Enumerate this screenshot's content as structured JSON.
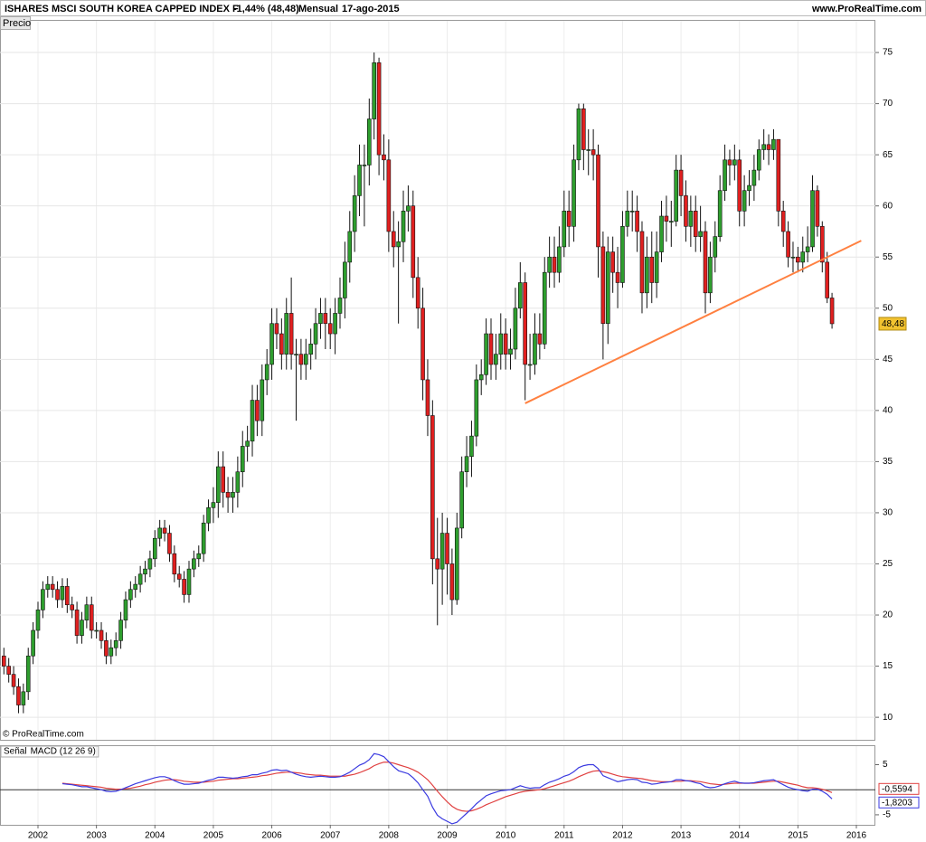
{
  "header": {
    "title": "ISHARES MSCI SOUTH KOREA CAPPED INDEX F",
    "change": "-1,44% (48,48)",
    "period": "Mensual",
    "date": "17-ago-2015",
    "source": "www.ProRealTime.com"
  },
  "chart_data": [
    {
      "type": "candlestick",
      "panel_label": "Precio",
      "copyright": "© ProRealTime.com",
      "up_color": "#2e9e2e",
      "down_color": "#e02020",
      "grid": true,
      "ylim": [
        7.8,
        78.1
      ],
      "yticks": [
        10,
        15,
        20,
        25,
        30,
        35,
        40,
        45,
        50,
        55,
        60,
        65,
        70,
        75
      ],
      "categories": [
        null,
        null,
        null,
        null,
        null,
        null,
        null,
        "2002",
        null,
        null,
        null,
        null,
        null,
        null,
        null,
        null,
        null,
        null,
        null,
        "2003",
        null,
        null,
        null,
        null,
        null,
        null,
        null,
        null,
        null,
        null,
        null,
        "2004",
        null,
        null,
        null,
        null,
        null,
        null,
        null,
        null,
        null,
        null,
        null,
        "2005",
        null,
        null,
        null,
        null,
        null,
        null,
        null,
        null,
        null,
        null,
        null,
        "2006",
        null,
        null,
        null,
        null,
        null,
        null,
        null,
        null,
        null,
        null,
        null,
        "2007",
        null,
        null,
        null,
        null,
        null,
        null,
        null,
        null,
        null,
        null,
        null,
        "2008",
        null,
        null,
        null,
        null,
        null,
        null,
        null,
        null,
        null,
        null,
        null,
        "2009",
        null,
        null,
        null,
        null,
        null,
        null,
        null,
        null,
        null,
        null,
        null,
        "2010",
        null,
        null,
        null,
        null,
        null,
        null,
        null,
        null,
        null,
        null,
        null,
        "2011",
        null,
        null,
        null,
        null,
        null,
        null,
        null,
        null,
        null,
        null,
        null,
        "2012",
        null,
        null,
        null,
        null,
        null,
        null,
        null,
        null,
        null,
        null,
        null,
        "2013",
        null,
        null,
        null,
        null,
        null,
        null,
        null,
        null,
        null,
        null,
        null,
        "2014",
        null,
        null,
        null,
        null,
        null,
        null,
        null,
        null,
        null,
        null,
        null,
        "2015",
        null,
        null,
        null,
        null,
        null,
        null,
        null,
        null,
        null,
        null,
        null,
        "2016"
      ],
      "open": [
        16.0,
        15.0,
        14.2,
        13.0,
        11.2,
        12.5,
        16.0,
        18.5,
        20.5,
        22.5,
        23.0,
        22.5,
        21.5,
        22.8,
        21.0,
        20.5,
        18.0,
        19.5,
        21.0,
        18.5,
        18.5,
        17.5,
        16.0,
        16.8,
        17.5,
        19.5,
        21.5,
        22.5,
        23.0,
        24.0,
        24.5,
        25.5,
        27.5,
        28.5,
        28.0,
        26.0,
        24.0,
        23.5,
        22.0,
        24.5,
        25.5,
        26.0,
        29.0,
        30.5,
        31.0,
        34.5,
        32.0,
        31.5,
        32.0,
        34.0,
        36.5,
        37.0,
        41.0,
        39.0,
        43.0,
        44.5,
        48.5,
        47.5,
        45.5,
        49.5,
        45.5,
        45.5,
        44.5,
        45.5,
        46.5,
        48.5,
        49.5,
        48.5,
        47.5,
        49.5,
        51.0,
        54.5,
        57.5,
        61.0,
        64.0,
        64.0,
        68.5,
        74.0,
        65.0,
        64.5,
        57.5,
        56.0,
        56.5,
        59.5,
        60.0,
        53.0,
        50.0,
        43.0,
        39.5,
        25.5,
        24.5,
        28.0,
        25.0,
        21.5,
        28.5,
        34.0,
        35.5,
        37.5,
        43.0,
        43.5,
        47.5,
        44.5,
        45.5,
        47.5,
        45.5,
        46.0,
        50.0,
        52.5,
        44.5,
        44.5,
        47.5,
        46.5,
        53.5,
        55.0,
        53.5,
        56.0,
        59.5,
        58.0,
        64.5,
        69.5,
        65.5,
        65.5,
        65.0,
        56.0,
        48.5,
        55.5,
        53.5,
        52.5,
        58.0,
        59.5,
        59.5,
        57.5,
        51.5,
        55.0,
        52.5,
        55.5,
        59.0,
        58.5,
        58.5,
        63.5,
        61.0,
        58.0,
        59.5,
        57.0,
        57.5,
        51.5,
        55.0,
        57.0,
        61.5,
        64.5,
        64.0,
        64.5,
        59.5,
        61.5,
        62.0,
        63.5,
        65.5,
        66.0,
        65.5,
        66.5,
        59.5,
        57.5,
        55.0,
        55.0,
        54.5,
        55.5,
        56.0,
        61.5,
        58.0,
        54.5,
        51.0,
        null,
        null,
        null,
        null,
        null
      ],
      "high": [
        16.8,
        15.8,
        15.0,
        13.8,
        13.3,
        16.8,
        19.3,
        21.3,
        23.3,
        23.8,
        23.8,
        23.3,
        23.6,
        23.6,
        21.8,
        21.3,
        20.3,
        21.8,
        21.8,
        19.3,
        19.3,
        18.3,
        17.6,
        18.3,
        20.3,
        22.3,
        23.3,
        23.8,
        24.8,
        25.3,
        26.3,
        28.3,
        29.3,
        29.3,
        28.8,
        26.8,
        24.8,
        24.3,
        25.3,
        26.3,
        26.8,
        29.8,
        31.3,
        32.5,
        36.0,
        36.0,
        33.5,
        33.5,
        35.5,
        38.0,
        38.5,
        42.5,
        42.5,
        44.5,
        46.0,
        50.0,
        50.0,
        49.0,
        51.0,
        53.0,
        47.0,
        47.0,
        47.0,
        48.0,
        50.0,
        51.0,
        51.0,
        50.0,
        51.0,
        53.0,
        56.5,
        59.5,
        63.0,
        66.0,
        66.0,
        70.5,
        75.0,
        74.5,
        67.0,
        66.5,
        59.5,
        58.5,
        61.5,
        62.0,
        61.5,
        55.0,
        52.0,
        45.0,
        41.0,
        29.5,
        30.0,
        29.5,
        26.5,
        30.0,
        35.5,
        37.5,
        39.0,
        44.5,
        45.0,
        49.0,
        49.0,
        47.5,
        49.5,
        49.0,
        48.0,
        52.0,
        54.5,
        53.5,
        47.5,
        49.5,
        49.5,
        55.0,
        57.0,
        57.0,
        58.0,
        61.5,
        61.5,
        66.0,
        70.0,
        70.0,
        67.5,
        67.5,
        66.0,
        57.5,
        57.0,
        57.0,
        56.0,
        59.5,
        61.5,
        61.5,
        61.0,
        58.5,
        57.0,
        57.5,
        57.5,
        60.5,
        61.0,
        60.5,
        65.0,
        65.0,
        62.5,
        61.0,
        61.0,
        60.0,
        58.5,
        56.5,
        58.5,
        63.0,
        66.0,
        65.5,
        66.0,
        65.5,
        63.0,
        63.5,
        65.0,
        66.5,
        67.5,
        67.0,
        67.5,
        66.5,
        60.5,
        58.5,
        56.5,
        56.0,
        57.0,
        58.0,
        63.0,
        62.0,
        58.5,
        55.5,
        51.5,
        null,
        null,
        null,
        null,
        null
      ],
      "low": [
        14.2,
        13.4,
        12.2,
        10.4,
        10.4,
        11.7,
        15.2,
        17.7,
        19.7,
        21.7,
        21.7,
        20.7,
        20.7,
        20.2,
        19.7,
        17.2,
        17.2,
        18.7,
        17.7,
        17.7,
        16.7,
        15.2,
        15.2,
        16.0,
        16.7,
        18.7,
        20.7,
        21.7,
        22.2,
        23.2,
        23.7,
        24.7,
        26.7,
        27.2,
        25.2,
        23.2,
        22.7,
        21.2,
        21.2,
        23.7,
        24.7,
        25.2,
        28.2,
        29.0,
        29.5,
        30.5,
        30.0,
        30.0,
        30.5,
        32.5,
        35.0,
        35.5,
        37.5,
        37.5,
        41.5,
        43.0,
        46.0,
        44.0,
        44.0,
        44.0,
        39.0,
        43.0,
        43.0,
        44.0,
        45.0,
        47.0,
        46.0,
        46.0,
        45.5,
        48.0,
        49.0,
        52.5,
        55.5,
        59.0,
        58.0,
        62.0,
        66.5,
        63.0,
        62.5,
        55.5,
        54.0,
        48.5,
        54.5,
        57.5,
        51.0,
        48.0,
        41.0,
        37.5,
        23.0,
        19.0,
        21.0,
        22.0,
        20.0,
        21.0,
        27.5,
        32.5,
        33.5,
        36.5,
        41.5,
        42.5,
        43.0,
        43.0,
        44.0,
        44.0,
        44.0,
        45.0,
        49.0,
        41.0,
        43.0,
        43.5,
        45.0,
        46.0,
        52.0,
        52.0,
        52.5,
        55.0,
        56.0,
        56.5,
        63.5,
        63.5,
        63.0,
        62.5,
        53.0,
        45.0,
        46.5,
        51.5,
        50.0,
        52.0,
        57.0,
        57.5,
        55.5,
        49.5,
        50.0,
        50.5,
        51.0,
        54.5,
        56.5,
        56.0,
        58.0,
        59.0,
        56.5,
        56.0,
        55.5,
        55.5,
        49.5,
        50.5,
        53.5,
        56.5,
        60.5,
        62.0,
        62.5,
        58.0,
        58.0,
        60.0,
        60.5,
        62.5,
        64.5,
        64.0,
        64.5,
        58.0,
        56.0,
        54.0,
        53.5,
        53.5,
        53.5,
        54.5,
        55.5,
        57.0,
        53.5,
        50.5,
        48.0,
        null,
        null,
        null,
        null,
        null
      ],
      "close": [
        15.0,
        14.2,
        13.0,
        11.2,
        12.5,
        16.0,
        18.5,
        20.5,
        22.5,
        23.0,
        22.5,
        21.5,
        22.8,
        21.0,
        20.5,
        18.0,
        19.5,
        21.0,
        18.5,
        18.5,
        17.5,
        16.0,
        16.8,
        17.5,
        19.5,
        21.5,
        22.5,
        23.0,
        24.0,
        24.5,
        25.5,
        27.5,
        28.5,
        28.0,
        26.0,
        24.0,
        23.5,
        22.0,
        24.5,
        25.5,
        26.0,
        29.0,
        30.5,
        31.0,
        34.5,
        32.0,
        31.5,
        32.0,
        34.0,
        36.5,
        37.0,
        41.0,
        39.0,
        43.0,
        44.5,
        48.5,
        47.5,
        45.5,
        49.5,
        45.5,
        45.5,
        44.5,
        45.5,
        46.5,
        48.5,
        49.5,
        48.5,
        47.5,
        49.5,
        51.0,
        54.5,
        57.5,
        61.0,
        64.0,
        64.0,
        68.5,
        74.0,
        65.0,
        64.5,
        57.5,
        56.0,
        56.5,
        59.5,
        60.0,
        53.0,
        50.0,
        43.0,
        39.5,
        25.5,
        24.5,
        28.0,
        25.0,
        21.5,
        28.5,
        34.0,
        35.5,
        37.5,
        43.0,
        43.5,
        47.5,
        44.5,
        45.5,
        47.5,
        45.5,
        46.0,
        50.0,
        52.5,
        44.5,
        44.5,
        47.5,
        46.5,
        53.5,
        55.0,
        53.5,
        56.0,
        59.5,
        58.0,
        64.5,
        69.5,
        65.5,
        65.5,
        65.0,
        56.0,
        48.5,
        55.5,
        53.5,
        52.5,
        58.0,
        59.5,
        59.5,
        57.5,
        51.5,
        55.0,
        52.5,
        55.5,
        59.0,
        58.5,
        58.5,
        63.5,
        61.0,
        58.0,
        59.5,
        57.0,
        57.5,
        51.5,
        55.0,
        57.0,
        61.5,
        64.5,
        64.0,
        64.5,
        59.5,
        61.5,
        62.0,
        63.5,
        65.5,
        66.0,
        65.5,
        66.5,
        59.5,
        57.5,
        55.0,
        55.0,
        54.5,
        55.5,
        56.0,
        61.5,
        58.0,
        54.5,
        51.0,
        48.48,
        null,
        null,
        null,
        null,
        null
      ],
      "last_label": "48,48",
      "trendline": {
        "color": "#ff8040",
        "x": [
          107,
          176
        ],
        "y": [
          40.7,
          56.6
        ]
      }
    },
    {
      "type": "line",
      "ylim": [
        -7,
        8.7
      ],
      "yticks": [
        -5,
        5
      ],
      "series": [
        {
          "name": "Señal",
          "color": "#e04040",
          "last_label": "-0,5594",
          "values": [
            null,
            null,
            null,
            null,
            null,
            null,
            null,
            null,
            null,
            null,
            null,
            null,
            1.3,
            1.2,
            1.1,
            1.0,
            0.9,
            0.8,
            0.7,
            0.6,
            0.5,
            0.3,
            0.2,
            0.1,
            0.1,
            0.2,
            0.3,
            0.5,
            0.7,
            1.0,
            1.2,
            1.5,
            1.7,
            1.9,
            2.0,
            2.0,
            1.9,
            1.7,
            1.6,
            1.5,
            1.5,
            1.5,
            1.6,
            1.7,
            1.9,
            2.0,
            2.1,
            2.2,
            2.2,
            2.3,
            2.4,
            2.5,
            2.6,
            2.8,
            2.9,
            3.1,
            3.3,
            3.4,
            3.5,
            3.5,
            3.4,
            3.3,
            3.1,
            3.0,
            2.9,
            2.9,
            2.8,
            2.7,
            2.7,
            2.7,
            2.7,
            2.9,
            3.1,
            3.4,
            3.8,
            4.2,
            4.8,
            5.2,
            5.5,
            5.5,
            5.3,
            5.0,
            4.7,
            4.4,
            4.0,
            3.5,
            2.8,
            2.0,
            0.9,
            -0.3,
            -1.4,
            -2.4,
            -3.3,
            -3.9,
            -4.2,
            -4.3,
            -4.2,
            -3.9,
            -3.5,
            -3.0,
            -2.6,
            -2.2,
            -1.8,
            -1.4,
            -1.1,
            -0.8,
            -0.5,
            -0.3,
            -0.2,
            -0.1,
            0.0,
            0.2,
            0.5,
            0.8,
            1.1,
            1.4,
            1.7,
            2.1,
            2.6,
            3.0,
            3.4,
            3.7,
            3.8,
            3.6,
            3.4,
            3.1,
            2.8,
            2.6,
            2.5,
            2.4,
            2.3,
            2.2,
            2.0,
            1.8,
            1.7,
            1.6,
            1.6,
            1.6,
            1.7,
            1.7,
            1.8,
            1.8,
            1.7,
            1.6,
            1.4,
            1.2,
            1.1,
            1.0,
            1.1,
            1.2,
            1.3,
            1.3,
            1.3,
            1.3,
            1.3,
            1.4,
            1.5,
            1.6,
            1.7,
            1.7,
            1.5,
            1.3,
            1.1,
            0.9,
            0.6,
            0.4,
            0.4,
            0.3,
            0.1,
            -0.2,
            -0.5594,
            null,
            null,
            null,
            null,
            null
          ]
        },
        {
          "name": "MACD (12 26 9)",
          "color": "#3a3ae0",
          "last_label": "-1,8203",
          "values": [
            null,
            null,
            null,
            null,
            null,
            null,
            null,
            null,
            null,
            null,
            null,
            null,
            1.2,
            1.1,
            1.0,
            0.8,
            0.6,
            0.6,
            0.4,
            0.2,
            0.0,
            -0.3,
            -0.4,
            -0.3,
            0.0,
            0.4,
            0.8,
            1.2,
            1.5,
            1.8,
            2.1,
            2.4,
            2.6,
            2.6,
            2.3,
            1.8,
            1.4,
            1.1,
            1.1,
            1.2,
            1.3,
            1.6,
            1.9,
            2.1,
            2.5,
            2.5,
            2.4,
            2.3,
            2.4,
            2.6,
            2.7,
            3.0,
            3.0,
            3.3,
            3.5,
            3.9,
            4.0,
            3.8,
            3.9,
            3.5,
            3.1,
            2.8,
            2.6,
            2.5,
            2.6,
            2.7,
            2.6,
            2.5,
            2.5,
            2.6,
            3.0,
            3.5,
            4.2,
            4.9,
            5.3,
            6.0,
            7.2,
            7.0,
            6.6,
            5.6,
            4.6,
            3.8,
            3.5,
            3.2,
            2.4,
            1.4,
            0.0,
            -1.3,
            -3.5,
            -5.1,
            -5.8,
            -6.3,
            -6.8,
            -6.5,
            -5.6,
            -4.7,
            -3.8,
            -2.8,
            -2.0,
            -1.2,
            -0.8,
            -0.5,
            -0.2,
            -0.1,
            0.0,
            0.4,
            0.8,
            0.5,
            0.3,
            0.4,
            0.4,
            1.0,
            1.5,
            1.8,
            2.2,
            2.7,
            3.0,
            3.6,
            4.4,
            4.8,
            5.0,
            5.0,
            4.2,
            2.8,
            2.4,
            2.0,
            1.6,
            1.8,
            2.0,
            2.1,
            2.0,
            1.5,
            1.4,
            1.1,
            1.2,
            1.4,
            1.5,
            1.6,
            2.0,
            2.0,
            1.8,
            1.7,
            1.4,
            1.2,
            0.6,
            0.4,
            0.5,
            0.8,
            1.2,
            1.5,
            1.7,
            1.4,
            1.3,
            1.3,
            1.4,
            1.6,
            1.8,
            1.9,
            2.0,
            1.5,
            1.0,
            0.5,
            0.2,
            0.0,
            -0.2,
            -0.3,
            0.1,
            0.1,
            -0.3,
            -0.9,
            -1.8203,
            null,
            null,
            null,
            null,
            null
          ]
        }
      ]
    }
  ]
}
